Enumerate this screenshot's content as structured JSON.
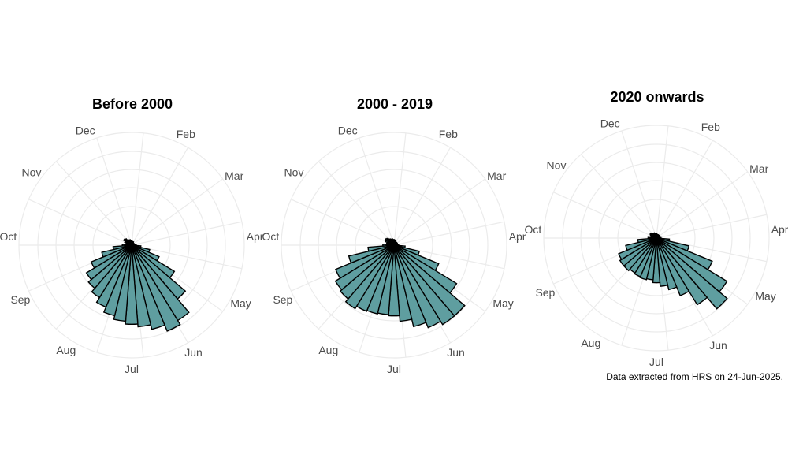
{
  "caption": "Data extracted from HRS on 24-Jun-2025.",
  "colors": {
    "bar_fill": "#5f9ea0",
    "bar_stroke": "#000000",
    "grid": "#ebebeb"
  },
  "chart_data": [
    {
      "type": "bar",
      "coord": "polar",
      "title": "Before 2000",
      "angle_labels": [
        "Apr",
        "May",
        "Jun",
        "Jul",
        "Aug",
        "Sep",
        "Oct",
        "Nov",
        "Dec",
        "Feb",
        "Mar"
      ],
      "bar_angles_deg": [
        90,
        99,
        108,
        117,
        126,
        135,
        144,
        153,
        162,
        171,
        180,
        189,
        198,
        207,
        216,
        225,
        234,
        243,
        252,
        261,
        270,
        279,
        288,
        297,
        306,
        315,
        324,
        333,
        342,
        351,
        360,
        9,
        18,
        27,
        36,
        45,
        54,
        63,
        72,
        81
      ],
      "values": [
        5,
        10,
        20,
        32,
        54,
        76,
        95,
        100,
        93,
        88,
        85,
        82,
        78,
        72,
        66,
        61,
        57,
        47,
        33,
        20,
        10,
        6,
        6,
        8,
        10,
        9,
        7,
        6,
        6,
        5,
        5,
        4,
        4,
        4,
        3,
        3,
        3,
        3,
        3,
        3
      ]
    },
    {
      "type": "bar",
      "coord": "polar",
      "title": "2000 - 2019",
      "angle_labels": [
        "Apr",
        "May",
        "Jun",
        "Jul",
        "Aug",
        "Sep",
        "Oct",
        "Nov",
        "Dec",
        "Feb",
        "Mar"
      ],
      "bar_angles_deg": [
        90,
        99,
        108,
        117,
        126,
        135,
        144,
        153,
        162,
        171,
        180,
        189,
        198,
        207,
        216,
        225,
        234,
        243,
        252,
        261,
        270,
        279,
        288,
        297,
        306,
        315,
        324,
        333,
        342,
        351,
        360,
        9,
        18,
        27,
        36,
        45,
        54,
        63,
        72,
        81
      ],
      "values": [
        5,
        12,
        28,
        52,
        79,
        100,
        100,
        96,
        90,
        82,
        76,
        75,
        76,
        77,
        80,
        76,
        74,
        68,
        50,
        28,
        12,
        8,
        8,
        10,
        11,
        10,
        8,
        7,
        7,
        6,
        6,
        5,
        5,
        4,
        4,
        4,
        4,
        4,
        4,
        4
      ]
    },
    {
      "type": "bar",
      "coord": "polar",
      "title": "2020 onwards",
      "angle_labels": [
        "Apr",
        "May",
        "Jun",
        "Jul",
        "Aug",
        "Sep",
        "Oct",
        "Nov",
        "Dec",
        "Feb",
        "Mar"
      ],
      "bar_angles_deg": [
        90,
        99,
        108,
        117,
        126,
        135,
        144,
        153,
        162,
        171,
        180,
        189,
        198,
        207,
        216,
        225,
        234,
        243,
        252,
        261,
        270,
        279,
        288,
        297,
        306,
        315,
        324,
        333,
        342,
        351,
        360,
        9,
        18,
        27,
        36,
        45,
        54,
        63,
        72,
        81
      ],
      "values": [
        5,
        14,
        36,
        65,
        89,
        100,
        84,
        67,
        57,
        52,
        48,
        45,
        46,
        45,
        44,
        46,
        46,
        44,
        34,
        20,
        9,
        6,
        6,
        7,
        8,
        7,
        6,
        6,
        5,
        5,
        5,
        4,
        4,
        4,
        4,
        4,
        4,
        4,
        4,
        4
      ]
    }
  ]
}
